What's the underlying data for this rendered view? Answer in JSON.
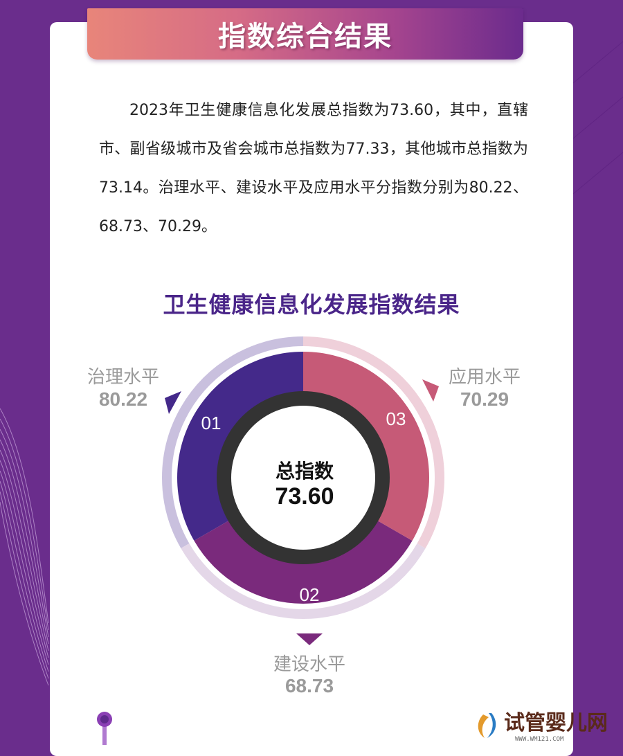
{
  "banner": {
    "title": "指数综合结果"
  },
  "summary": {
    "paragraph": "2023年卫生健康信息化发展总指数为73.60，其中，直辖市、副省级城市及省会城市总指数为77.33，其他城市总指数为73.14。治理水平、建设水平及应用水平分指数分别为80.22、68.73、70.29。"
  },
  "chart_data": {
    "type": "pie",
    "title": "卫生健康信息化发展指数结果",
    "center": {
      "label": "总指数",
      "value": "73.60"
    },
    "segments": [
      {
        "id": "01",
        "name": "治理水平",
        "value": "80.22",
        "color": "#44298a",
        "ring": "#c9c0de"
      },
      {
        "id": "02",
        "name": "建设水平",
        "value": "68.73",
        "color": "#7a2a7c",
        "ring": "#e4d7e8"
      },
      {
        "id": "03",
        "name": "应用水平",
        "value": "70.29",
        "color": "#c65a77",
        "ring": "#efd0da"
      }
    ]
  },
  "colors": {
    "background": "#6a2d8c",
    "title": "#4a2589",
    "hub_ring": "#333333"
  },
  "watermark": {
    "text": "试管婴儿网",
    "url": "WWW.WM121.COM"
  }
}
